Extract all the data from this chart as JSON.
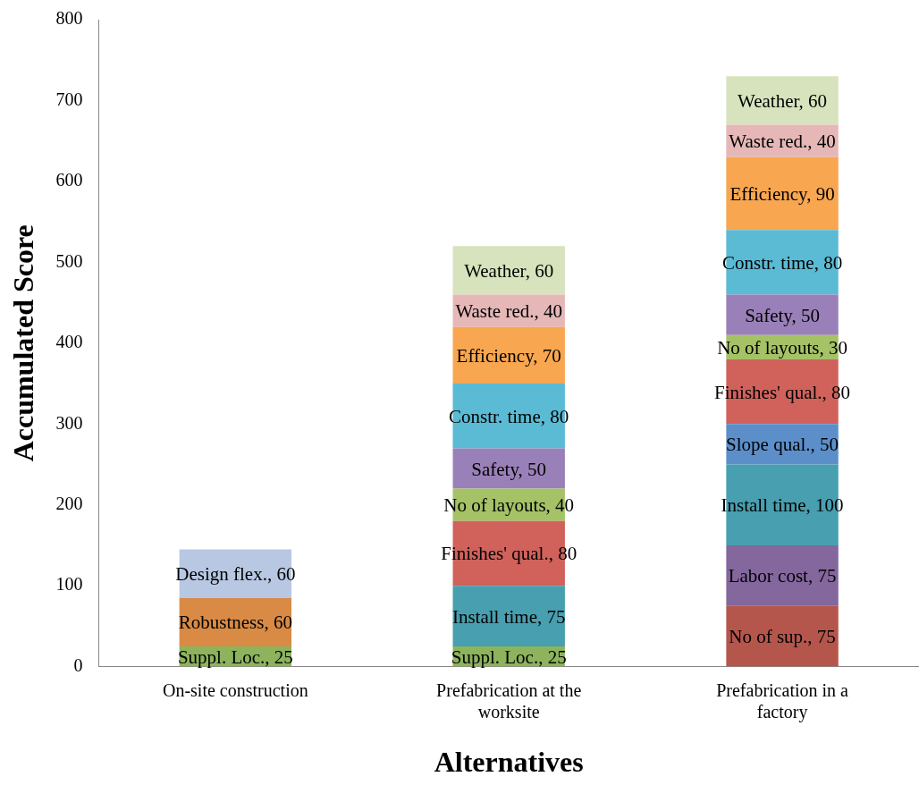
{
  "chart_data": {
    "type": "bar",
    "stacked": true,
    "xlabel": "Alternatives",
    "ylabel": "Accumulated Score",
    "categories": [
      "On-site construction",
      "Prefabrication at the worksite",
      "Prefabrication in a factory"
    ],
    "ylim": [
      0,
      800
    ],
    "yticks": [
      0,
      100,
      200,
      300,
      400,
      500,
      600,
      700,
      800
    ],
    "grid": false,
    "legend": false,
    "series": [
      {
        "color": "#8db35c",
        "values": [
          25,
          25,
          null
        ],
        "value_labels": [
          "Suppl. Loc., 25",
          "Suppl. Loc., 25",
          null
        ]
      },
      {
        "color": "#d98a45",
        "values": [
          60,
          null,
          null
        ],
        "value_labels": [
          "Robustness, 60",
          null,
          null
        ]
      },
      {
        "color": "#b8c8e3",
        "values": [
          60,
          null,
          null
        ],
        "value_labels": [
          "Design flex., 60",
          null,
          null
        ]
      },
      {
        "color": "#b5564d",
        "values": [
          null,
          null,
          75
        ],
        "value_labels": [
          null,
          null,
          "No of sup., 75"
        ]
      },
      {
        "color": "#83679d",
        "values": [
          null,
          null,
          75
        ],
        "value_labels": [
          null,
          null,
          "Labor cost, 75"
        ]
      },
      {
        "color": "#479fb0",
        "values": [
          null,
          75,
          100
        ],
        "value_labels": [
          null,
          "Install time, 75",
          "Install time, 100"
        ]
      },
      {
        "color": "#5c8fca",
        "values": [
          null,
          null,
          50
        ],
        "value_labels": [
          null,
          null,
          "Slope qual., 50"
        ]
      },
      {
        "color": "#d0625b",
        "values": [
          null,
          80,
          80
        ],
        "value_labels": [
          null,
          "Finishes' qual., 80",
          "Finishes' qual., 80"
        ]
      },
      {
        "color": "#a5c266",
        "values": [
          null,
          40,
          30
        ],
        "value_labels": [
          null,
          "No of layouts, 40",
          "No of layouts, 30"
        ]
      },
      {
        "color": "#9a80b8",
        "values": [
          null,
          50,
          50
        ],
        "value_labels": [
          null,
          "Safety, 50",
          "Safety, 50"
        ]
      },
      {
        "color": "#5bbad4",
        "values": [
          null,
          80,
          80
        ],
        "value_labels": [
          null,
          "Constr. time, 80",
          "Constr. time, 80"
        ]
      },
      {
        "color": "#f8a650",
        "values": [
          null,
          70,
          90
        ],
        "value_labels": [
          null,
          "Efficiency, 70",
          "Efficiency, 90"
        ]
      },
      {
        "color": "#e5b8b7",
        "values": [
          null,
          40,
          40
        ],
        "value_labels": [
          null,
          "Waste red., 40",
          "Waste red., 40"
        ]
      },
      {
        "color": "#d6e3bc",
        "values": [
          null,
          60,
          60
        ],
        "value_labels": [
          null,
          "Weather, 60",
          "Weather, 60"
        ]
      }
    ]
  }
}
